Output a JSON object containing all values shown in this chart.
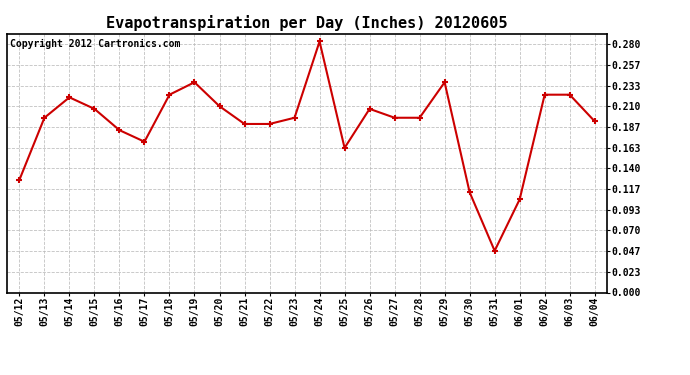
{
  "title": "Evapotranspiration per Day (Inches) 20120605",
  "copyright_text": "Copyright 2012 Cartronics.com",
  "dates": [
    "05/12",
    "05/13",
    "05/14",
    "05/15",
    "05/16",
    "05/17",
    "05/18",
    "05/19",
    "05/20",
    "05/21",
    "05/22",
    "05/23",
    "05/24",
    "05/25",
    "05/26",
    "05/27",
    "05/28",
    "05/29",
    "05/30",
    "05/31",
    "06/01",
    "06/02",
    "06/03",
    "06/04"
  ],
  "values": [
    0.127,
    0.197,
    0.22,
    0.207,
    0.183,
    0.17,
    0.223,
    0.237,
    0.21,
    0.19,
    0.19,
    0.197,
    0.283,
    0.163,
    0.207,
    0.197,
    0.197,
    0.237,
    0.113,
    0.047,
    0.105,
    0.223,
    0.223,
    0.193
  ],
  "line_color": "#cc0000",
  "marker_color": "#cc0000",
  "bg_color": "#ffffff",
  "plot_bg_color": "#ffffff",
  "grid_color": "#bbbbbb",
  "title_fontsize": 11,
  "copyright_fontsize": 7,
  "tick_fontsize": 7,
  "ylim": [
    0.0,
    0.2917
  ],
  "yticks": [
    0.0,
    0.023,
    0.047,
    0.07,
    0.093,
    0.117,
    0.14,
    0.163,
    0.187,
    0.21,
    0.233,
    0.257,
    0.28
  ]
}
